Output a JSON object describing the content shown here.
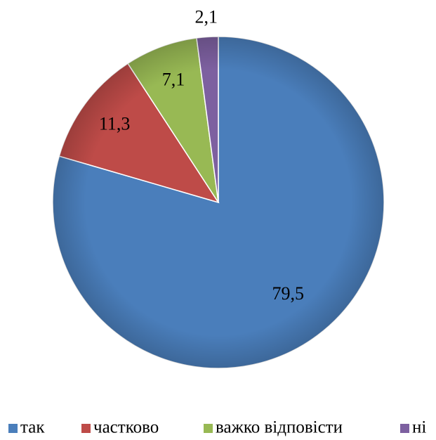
{
  "chart_data": {
    "type": "pie",
    "categories": [
      "так",
      "частково",
      "важко відповісти",
      "ні"
    ],
    "values": [
      79.5,
      11.3,
      7.1,
      2.1
    ],
    "value_labels": [
      "79,5",
      "11,3",
      "7,1",
      "2,1"
    ],
    "colors": [
      "#4a7ebb",
      "#be4b48",
      "#98b954",
      "#7d60a0"
    ],
    "legend": "bottom"
  }
}
